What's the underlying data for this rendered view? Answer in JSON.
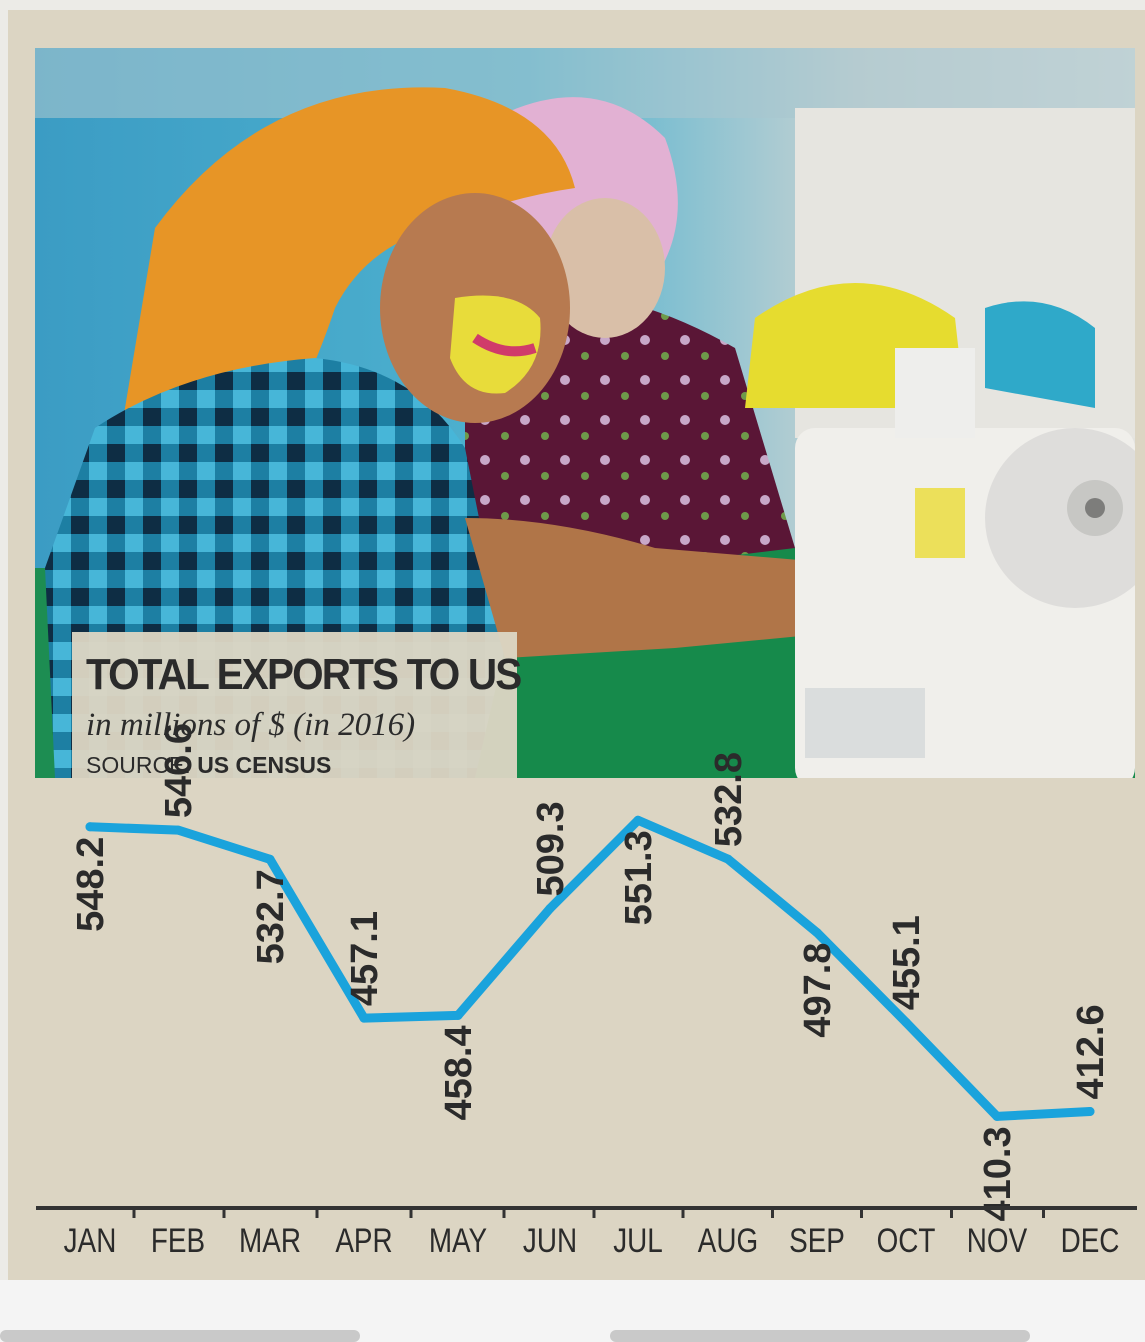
{
  "chart_data": {
    "type": "line",
    "title": "TOTAL EXPORTS TO US",
    "subtitle": "in millions of $ (in 2016)",
    "source_label": "SOURCE:",
    "source_name": "US CENSUS",
    "categories": [
      "JAN",
      "FEB",
      "MAR",
      "APR",
      "MAY",
      "JUN",
      "JUL",
      "AUG",
      "SEP",
      "OCT",
      "NOV",
      "DEC"
    ],
    "values": [
      548.2,
      546.6,
      532.7,
      457.1,
      458.4,
      509.3,
      551.3,
      532.8,
      497.8,
      455.1,
      410.3,
      412.6
    ],
    "labels": [
      "548.2",
      "546.6",
      "532.7",
      "457.1",
      "458.4",
      "509.3",
      "551.3",
      "532.8",
      "497.8",
      "455.1",
      "410.3",
      "412.6"
    ],
    "label_side": [
      "below",
      "above",
      "below",
      "above",
      "below",
      "above",
      "below",
      "above",
      "below",
      "above",
      "below",
      "above"
    ],
    "ylim": [
      380,
      580
    ],
    "grid": false,
    "legend": "none",
    "line_color": "#1aa3dc",
    "axis_color": "#333333",
    "text_color": "#2b2b2b"
  }
}
